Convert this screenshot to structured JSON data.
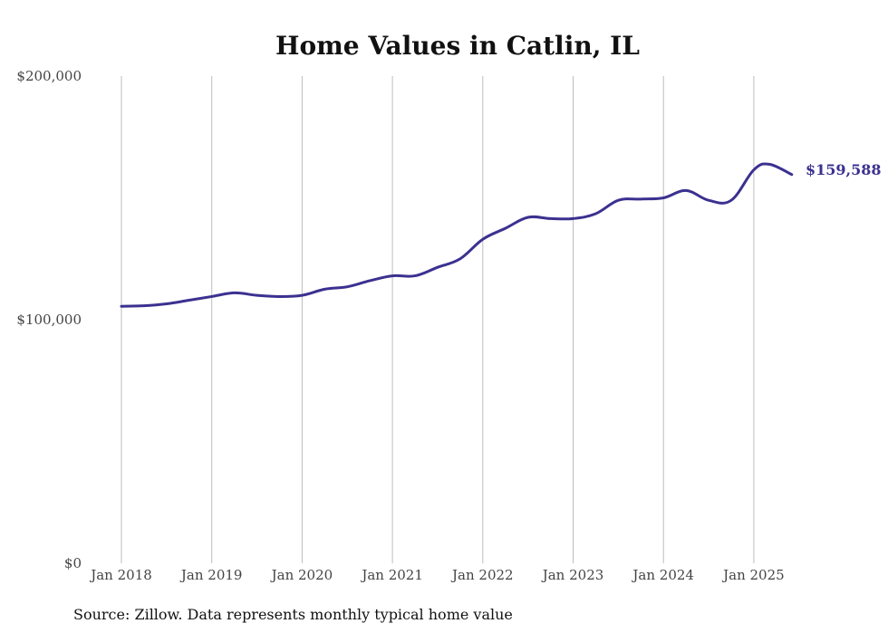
{
  "chart_data": {
    "type": "line",
    "title": "Home Values in Catlin, IL",
    "xlabel": "",
    "ylabel": "",
    "ylim": [
      0,
      200000
    ],
    "y_ticks": [
      {
        "value": 0,
        "label": "$0"
      },
      {
        "value": 100000,
        "label": "$100,000"
      },
      {
        "value": 200000,
        "label": "$200,000"
      }
    ],
    "x_ticks": [
      {
        "value": 2018,
        "label": "Jan 2018"
      },
      {
        "value": 2019,
        "label": "Jan 2019"
      },
      {
        "value": 2020,
        "label": "Jan 2020"
      },
      {
        "value": 2021,
        "label": "Jan 2021"
      },
      {
        "value": 2022,
        "label": "Jan 2022"
      },
      {
        "value": 2023,
        "label": "Jan 2023"
      },
      {
        "value": 2024,
        "label": "Jan 2024"
      },
      {
        "value": 2025,
        "label": "Jan 2025"
      }
    ],
    "grid": "vertical",
    "line_color": "#3b3190",
    "end_label": "$159,588",
    "series": [
      {
        "name": "",
        "points": [
          [
            2018.0,
            105500
          ],
          [
            2018.25,
            105700
          ],
          [
            2018.5,
            106500
          ],
          [
            2018.75,
            108000
          ],
          [
            2019.0,
            109500
          ],
          [
            2019.25,
            111000
          ],
          [
            2019.5,
            110000
          ],
          [
            2019.75,
            109500
          ],
          [
            2020.0,
            110000
          ],
          [
            2020.25,
            112500
          ],
          [
            2020.5,
            113500
          ],
          [
            2020.75,
            116000
          ],
          [
            2021.0,
            118000
          ],
          [
            2021.25,
            118000
          ],
          [
            2021.5,
            121500
          ],
          [
            2021.75,
            125000
          ],
          [
            2022.0,
            133000
          ],
          [
            2022.25,
            137500
          ],
          [
            2022.5,
            142000
          ],
          [
            2022.75,
            141500
          ],
          [
            2023.0,
            141500
          ],
          [
            2023.25,
            143500
          ],
          [
            2023.5,
            149000
          ],
          [
            2023.75,
            149500
          ],
          [
            2024.0,
            150000
          ],
          [
            2024.25,
            153000
          ],
          [
            2024.5,
            149000
          ],
          [
            2024.75,
            149000
          ],
          [
            2025.0,
            161500
          ],
          [
            2025.17,
            163800
          ],
          [
            2025.42,
            159588
          ]
        ]
      }
    ]
  },
  "source_note": "Source: Zillow. Data represents monthly typical home value"
}
